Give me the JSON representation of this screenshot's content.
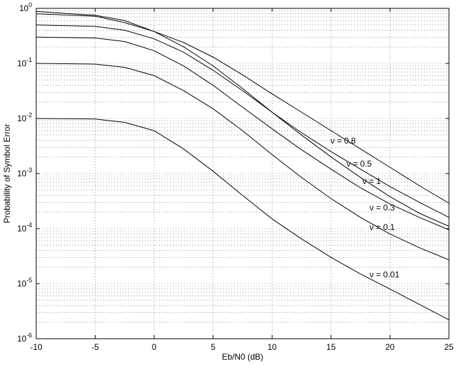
{
  "chart_data": {
    "type": "line",
    "xlabel": "Eb/N0 (dB)",
    "ylabel": "Probability of Symbol Error",
    "x": [
      -10,
      -5,
      -2.5,
      0,
      2.5,
      5,
      7.5,
      10,
      12.5,
      15,
      17.5,
      20,
      22.5,
      25
    ],
    "series": [
      {
        "name": "ν = 0.01",
        "color": "#000000",
        "values": [
          0.01,
          0.0098,
          0.0085,
          0.006,
          0.0028,
          0.0011,
          0.0004,
          0.00015,
          6.5e-05,
          3e-05,
          1.5e-05,
          8e-06,
          4.2e-06,
          2.2e-06
        ]
      },
      {
        "name": "ν = 0.1",
        "color": "#000000",
        "values": [
          0.1,
          0.097,
          0.085,
          0.06,
          0.032,
          0.015,
          0.006,
          0.0022,
          0.00085,
          0.00035,
          0.00016,
          8e-05,
          4.5e-05,
          2.7e-05
        ]
      },
      {
        "name": "ν = 0.3",
        "color": "#000000",
        "values": [
          0.3,
          0.29,
          0.25,
          0.17,
          0.09,
          0.04,
          0.016,
          0.0065,
          0.0027,
          0.0012,
          0.00055,
          0.00028,
          0.00016,
          9.5e-05
        ]
      },
      {
        "name": "ν = 1",
        "color": "#000000",
        "values": [
          0.88,
          0.75,
          0.6,
          0.38,
          0.2,
          0.09,
          0.035,
          0.013,
          0.005,
          0.002,
          0.00085,
          0.00038,
          0.00019,
          0.00011
        ]
      },
      {
        "name": "ν = 0.5",
        "color": "#000000",
        "values": [
          0.5,
          0.47,
          0.4,
          0.28,
          0.16,
          0.075,
          0.032,
          0.013,
          0.0055,
          0.0025,
          0.0012,
          0.00058,
          0.0003,
          0.00016
        ]
      },
      {
        "name": "ν = 0.8",
        "color": "#000000",
        "values": [
          0.8,
          0.72,
          0.55,
          0.38,
          0.24,
          0.13,
          0.062,
          0.028,
          0.013,
          0.006,
          0.0028,
          0.0013,
          0.0006,
          0.00029
        ]
      }
    ],
    "xlim": [
      -10,
      25
    ],
    "xticks": [
      -10,
      -5,
      0,
      5,
      10,
      15,
      20,
      25
    ],
    "ylim": [
      1e-06,
      1
    ],
    "yticks": [
      {
        "value": 1e-06,
        "label": "10^-6"
      },
      {
        "value": 1e-05,
        "label": "10^-5"
      },
      {
        "value": 0.0001,
        "label": "10^-4"
      },
      {
        "value": 0.001,
        "label": "10^-3"
      },
      {
        "value": 0.01,
        "label": "10^-2"
      },
      {
        "value": 0.1,
        "label": "10^-1"
      },
      {
        "value": 1,
        "label": "10^0"
      }
    ],
    "log_y": true,
    "grid": true
  }
}
